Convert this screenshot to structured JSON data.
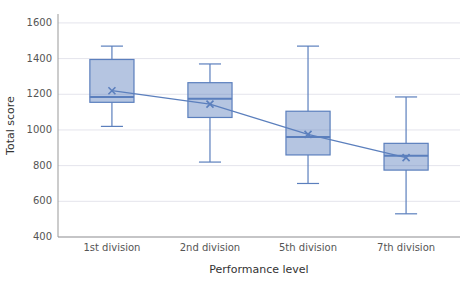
{
  "chart_data": {
    "type": "box",
    "xlabel": "Performance level",
    "ylabel": "Total score",
    "categories": [
      "1st division",
      "2nd division",
      "5th division",
      "7th division"
    ],
    "boxes": [
      {
        "whisker_low": 1020,
        "q1": 1155,
        "median": 1185,
        "q3": 1395,
        "whisker_high": 1470,
        "mean": 1220
      },
      {
        "whisker_low": 820,
        "q1": 1070,
        "median": 1175,
        "q3": 1265,
        "whisker_high": 1370,
        "mean": 1145
      },
      {
        "whisker_low": 700,
        "q1": 860,
        "median": 960,
        "q3": 1105,
        "whisker_high": 1470,
        "mean": 975
      },
      {
        "whisker_low": 530,
        "q1": 775,
        "median": 855,
        "q3": 925,
        "whisker_high": 1185,
        "mean": 845
      }
    ],
    "color": "#5b7fbd",
    "marker": "x",
    "ylim": [
      400,
      1650
    ],
    "yticks": [
      400,
      600,
      800,
      1000,
      1200,
      1400,
      1600
    ],
    "grid": true
  }
}
